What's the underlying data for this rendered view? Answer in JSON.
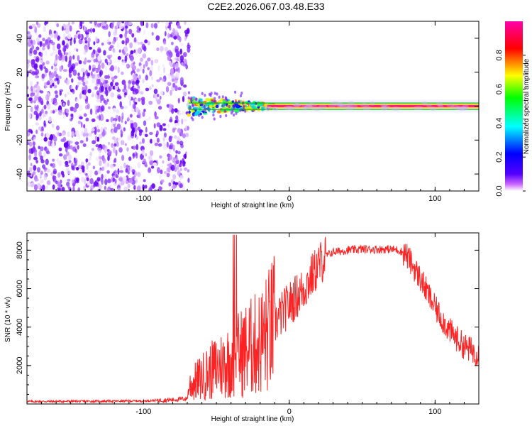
{
  "figure_title": "C2E2.2026.067.03.48.E33",
  "chart_data": [
    {
      "type": "heatmap",
      "name": "spectrogram",
      "xlabel": "Height of straight line (km)",
      "ylabel": "Frequency (Hz)",
      "xlim": [
        -180,
        130
      ],
      "ylim": [
        -50,
        50
      ],
      "x_ticks": [
        -100,
        0,
        100
      ],
      "y_ticks": [
        -40,
        -20,
        0,
        20,
        40
      ],
      "noise_region_x": [
        -180,
        -69
      ],
      "signal_onset_x": -69,
      "center_frequency_hz": 0,
      "colorbar": {
        "label": "Normalized spectral amplitude",
        "range": [
          0,
          1
        ],
        "ticks": [
          "0.0",
          "0.2",
          "0.4",
          "0.6",
          "0.8"
        ],
        "tick_values": [
          0.0,
          0.2,
          0.4,
          0.6,
          0.8
        ],
        "colors": [
          "#ffffff",
          "#cc66ff",
          "#5500ff",
          "#0000ff",
          "#00ffff",
          "#00ff00",
          "#ffff00",
          "#ff0000",
          "#ff00aa"
        ]
      }
    },
    {
      "type": "line",
      "name": "snr",
      "xlabel": "Height of straight line (km)",
      "ylabel": "SNR (10 * v/v)",
      "xlim": [
        -180,
        130
      ],
      "ylim": [
        0,
        8900
      ],
      "x_ticks": [
        -100,
        0,
        100
      ],
      "y_ticks": [
        2000,
        4000,
        6000,
        8000
      ],
      "line_color": "#ff2222",
      "x": [
        -180,
        -140,
        -100,
        -80,
        -70,
        -69,
        -60,
        -50,
        -40,
        -30,
        -20,
        -10,
        0,
        10,
        20,
        25,
        30,
        40,
        50,
        60,
        70,
        75,
        80,
        90,
        100,
        110,
        120,
        130
      ],
      "y": [
        130,
        140,
        160,
        220,
        280,
        900,
        1400,
        1900,
        2300,
        2800,
        3200,
        4200,
        5200,
        6000,
        7200,
        7700,
        7900,
        8000,
        8050,
        8050,
        8050,
        8000,
        7800,
        6500,
        5000,
        3800,
        3000,
        2600
      ]
    }
  ]
}
